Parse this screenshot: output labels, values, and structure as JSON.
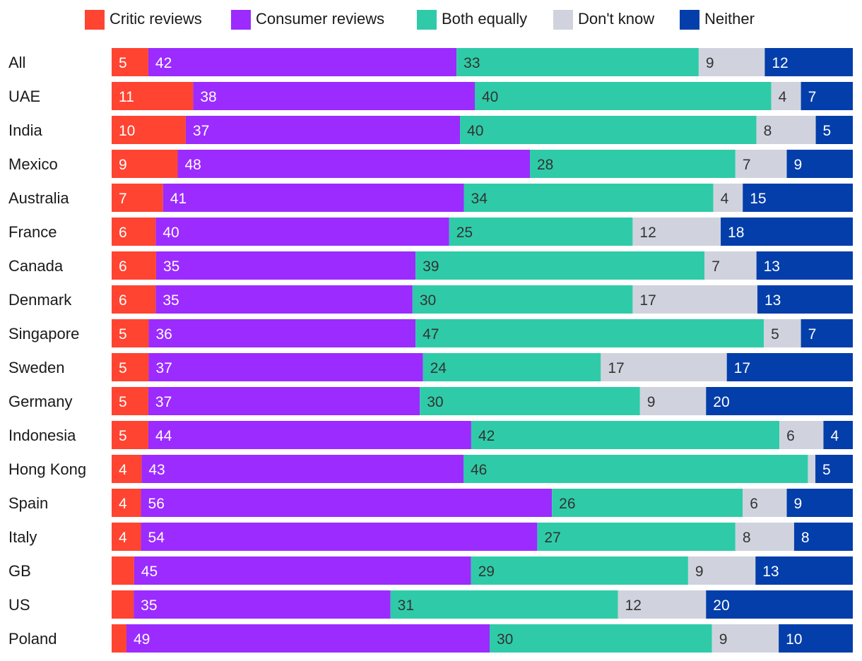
{
  "chart_data": {
    "type": "bar",
    "orientation": "horizontal",
    "stacked": true,
    "title": "",
    "xlabel": "",
    "ylabel": "",
    "xlim": [
      0,
      100
    ],
    "grid": false,
    "legend_position": "top",
    "categories": [
      "All",
      "UAE",
      "India",
      "Mexico",
      "Australia",
      "France",
      "Canada",
      "Denmark",
      "Singapore",
      "Sweden",
      "Germany",
      "Indonesia",
      "Hong Kong",
      "Spain",
      "Italy",
      "GB",
      "US",
      "Poland"
    ],
    "series": [
      {
        "name": "Critic reviews",
        "color": "#ff4431",
        "label_color": "#ffffff",
        "values": [
          5,
          11,
          10,
          9,
          7,
          6,
          6,
          6,
          5,
          5,
          5,
          5,
          4,
          4,
          4,
          3,
          3,
          2
        ],
        "labels": [
          "5",
          "11",
          "10",
          "9",
          "7",
          "6",
          "6",
          "6",
          "5",
          "5",
          "5",
          "5",
          "4",
          "4",
          "4",
          "",
          "",
          ""
        ]
      },
      {
        "name": "Consumer reviews",
        "color": "#9b2bff",
        "label_color": "#ffffff",
        "values": [
          42,
          38,
          37,
          48,
          41,
          40,
          35,
          35,
          36,
          37,
          37,
          44,
          43,
          56,
          54,
          45,
          35,
          49
        ],
        "labels": [
          "42",
          "38",
          "37",
          "48",
          "41",
          "40",
          "35",
          "35",
          "36",
          "37",
          "37",
          "44",
          "43",
          "56",
          "54",
          "45",
          "35",
          "49"
        ]
      },
      {
        "name": "Both equally",
        "color": "#2fcba8",
        "label_color": "#333333",
        "values": [
          33,
          40,
          40,
          28,
          34,
          25,
          39,
          30,
          47,
          24,
          30,
          42,
          46,
          26,
          27,
          29,
          31,
          30
        ],
        "labels": [
          "33",
          "40",
          "40",
          "28",
          "34",
          "25",
          "39",
          "30",
          "47",
          "24",
          "30",
          "42",
          "46",
          "26",
          "27",
          "29",
          "31",
          "30"
        ]
      },
      {
        "name": "Don't know",
        "color": "#d0d3de",
        "label_color": "#333333",
        "values": [
          9,
          4,
          8,
          7,
          4,
          12,
          7,
          17,
          5,
          17,
          9,
          6,
          1,
          6,
          8,
          9,
          12,
          9
        ],
        "labels": [
          "9",
          "4",
          "8",
          "7",
          "4",
          "12",
          "7",
          "17",
          "5",
          "17",
          "9",
          "6",
          "",
          "6",
          "8",
          "9",
          "12",
          "9"
        ]
      },
      {
        "name": "Neither",
        "color": "#033eaa",
        "label_color": "#ffffff",
        "values": [
          12,
          7,
          5,
          9,
          15,
          18,
          13,
          13,
          7,
          17,
          20,
          4,
          5,
          9,
          8,
          13,
          20,
          10
        ],
        "labels": [
          "12",
          "7",
          "5",
          "9",
          "15",
          "18",
          "13",
          "13",
          "7",
          "17",
          "20",
          "4",
          "5",
          "9",
          "8",
          "13",
          "20",
          "10"
        ]
      }
    ]
  }
}
